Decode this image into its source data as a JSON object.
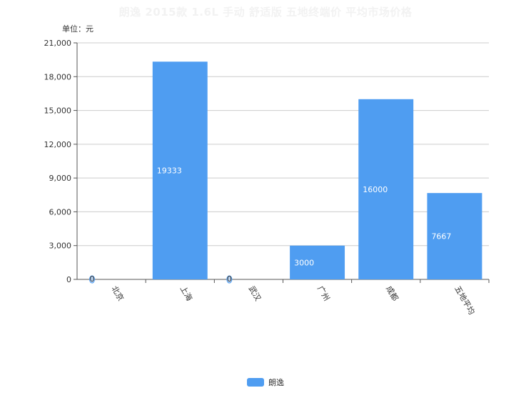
{
  "chart_data": {
    "type": "bar",
    "title": "朗逸 2015款 1.6L 手动 舒适版 五地终端价 平均市场价格",
    "unit_label": "单位：元",
    "categories": [
      "北京",
      "上海",
      "武汉",
      "广州",
      "成都",
      "五地平均"
    ],
    "series": [
      {
        "name": "朗逸",
        "values": [
          0,
          19333,
          0,
          3000,
          16000,
          7667
        ],
        "color": "#4f9df1"
      }
    ],
    "ylim": [
      0,
      21000
    ],
    "yticks": [
      0,
      3000,
      6000,
      9000,
      12000,
      15000,
      18000,
      21000
    ],
    "ytick_labels": [
      "0",
      "3,000",
      "6,000",
      "9,000",
      "12,000",
      "15,000",
      "18,000",
      "21,000"
    ],
    "grid": true,
    "legend_position": "bottom"
  }
}
